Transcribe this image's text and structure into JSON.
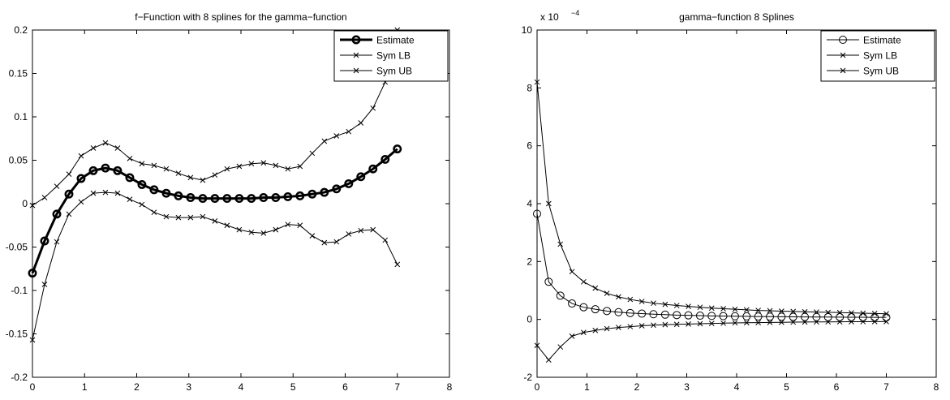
{
  "chart_data": [
    {
      "type": "line",
      "title": "f−Function with 8 splines for the gamma−function",
      "xlabel": "",
      "ylabel": "",
      "xlim": [
        0,
        8
      ],
      "ylim": [
        -0.2,
        0.2
      ],
      "x_ticks": [
        "0",
        "1",
        "2",
        "3",
        "4",
        "5",
        "6",
        "7",
        "8"
      ],
      "y_ticks": [
        "0.2",
        "0.15",
        "0.1",
        "0.05",
        "0",
        "-0.05",
        "-0.1",
        "-0.15",
        "-0.2"
      ],
      "grid": false,
      "legend_position": "top-right",
      "x": [
        0,
        0.233,
        0.467,
        0.7,
        0.933,
        1.167,
        1.4,
        1.633,
        1.867,
        2.1,
        2.333,
        2.567,
        2.8,
        3.033,
        3.267,
        3.5,
        3.733,
        3.967,
        4.2,
        4.433,
        4.667,
        4.9,
        5.133,
        5.367,
        5.6,
        5.833,
        6.067,
        6.3,
        6.533,
        6.767,
        7.0
      ],
      "series": [
        {
          "name": "Estimate",
          "marker": "circle",
          "line": "thick",
          "values": [
            -0.08,
            -0.043,
            -0.012,
            0.011,
            0.029,
            0.038,
            0.041,
            0.038,
            0.03,
            0.022,
            0.016,
            0.012,
            0.009,
            0.007,
            0.006,
            0.006,
            0.006,
            0.006,
            0.006,
            0.007,
            0.007,
            0.008,
            0.009,
            0.011,
            0.013,
            0.017,
            0.023,
            0.031,
            0.04,
            0.051,
            0.063
          ]
        },
        {
          "name": "Sym LB",
          "marker": "x",
          "line": "thin",
          "values": [
            -0.157,
            -0.093,
            -0.044,
            -0.012,
            0.002,
            0.012,
            0.013,
            0.012,
            0.005,
            -0.001,
            -0.01,
            -0.015,
            -0.016,
            -0.016,
            -0.015,
            -0.02,
            -0.025,
            -0.03,
            -0.033,
            -0.034,
            -0.03,
            -0.024,
            -0.025,
            -0.037,
            -0.045,
            -0.044,
            -0.035,
            -0.031,
            -0.03,
            -0.042,
            -0.07
          ]
        },
        {
          "name": "Sym UB",
          "marker": "x",
          "line": "thin",
          "values": [
            -0.002,
            0.007,
            0.02,
            0.034,
            0.055,
            0.064,
            0.07,
            0.064,
            0.052,
            0.046,
            0.044,
            0.04,
            0.035,
            0.03,
            0.027,
            0.033,
            0.04,
            0.043,
            0.046,
            0.047,
            0.044,
            0.04,
            0.043,
            0.058,
            0.072,
            0.078,
            0.083,
            0.093,
            0.11,
            0.14,
            0.2
          ]
        }
      ]
    },
    {
      "type": "line",
      "title": "gamma−function 8 Splines",
      "xlabel": "",
      "ylabel": "",
      "y_multiplier": "x 10",
      "y_multiplier_exponent": "−4",
      "xlim": [
        0,
        8
      ],
      "ylim": [
        -2,
        10
      ],
      "x_ticks": [
        "0",
        "1",
        "2",
        "3",
        "4",
        "5",
        "6",
        "7",
        "8"
      ],
      "y_ticks": [
        "10",
        "8",
        "6",
        "4",
        "2",
        "0",
        "-2"
      ],
      "grid": false,
      "legend_position": "top-right",
      "x": [
        0,
        0.233,
        0.467,
        0.7,
        0.933,
        1.167,
        1.4,
        1.633,
        1.867,
        2.1,
        2.333,
        2.567,
        2.8,
        3.033,
        3.267,
        3.5,
        3.733,
        3.967,
        4.2,
        4.433,
        4.667,
        4.9,
        5.133,
        5.367,
        5.6,
        5.833,
        6.067,
        6.3,
        6.533,
        6.767,
        7.0
      ],
      "series": [
        {
          "name": "Estimate",
          "marker": "circle",
          "line": "thin",
          "values": [
            3.65,
            1.3,
            0.82,
            0.55,
            0.42,
            0.35,
            0.29,
            0.25,
            0.22,
            0.2,
            0.18,
            0.165,
            0.15,
            0.14,
            0.13,
            0.12,
            0.115,
            0.11,
            0.105,
            0.1,
            0.095,
            0.092,
            0.088,
            0.085,
            0.082,
            0.08,
            0.078,
            0.076,
            0.074,
            0.072,
            0.07
          ]
        },
        {
          "name": "Sym LB",
          "marker": "x",
          "line": "thin",
          "values": [
            -0.9,
            -1.4,
            -0.95,
            -0.58,
            -0.45,
            -0.38,
            -0.32,
            -0.28,
            -0.25,
            -0.22,
            -0.2,
            -0.18,
            -0.17,
            -0.16,
            -0.15,
            -0.14,
            -0.13,
            -0.12,
            -0.115,
            -0.11,
            -0.105,
            -0.1,
            -0.095,
            -0.09,
            -0.088,
            -0.085,
            -0.082,
            -0.08,
            -0.078,
            -0.076,
            -0.075
          ]
        },
        {
          "name": "Sym UB",
          "marker": "x",
          "line": "thin",
          "values": [
            8.2,
            4.0,
            2.6,
            1.65,
            1.3,
            1.08,
            0.9,
            0.78,
            0.69,
            0.62,
            0.56,
            0.52,
            0.48,
            0.45,
            0.42,
            0.39,
            0.37,
            0.35,
            0.33,
            0.31,
            0.3,
            0.285,
            0.275,
            0.265,
            0.255,
            0.245,
            0.235,
            0.225,
            0.215,
            0.205,
            0.195
          ]
        }
      ]
    }
  ]
}
